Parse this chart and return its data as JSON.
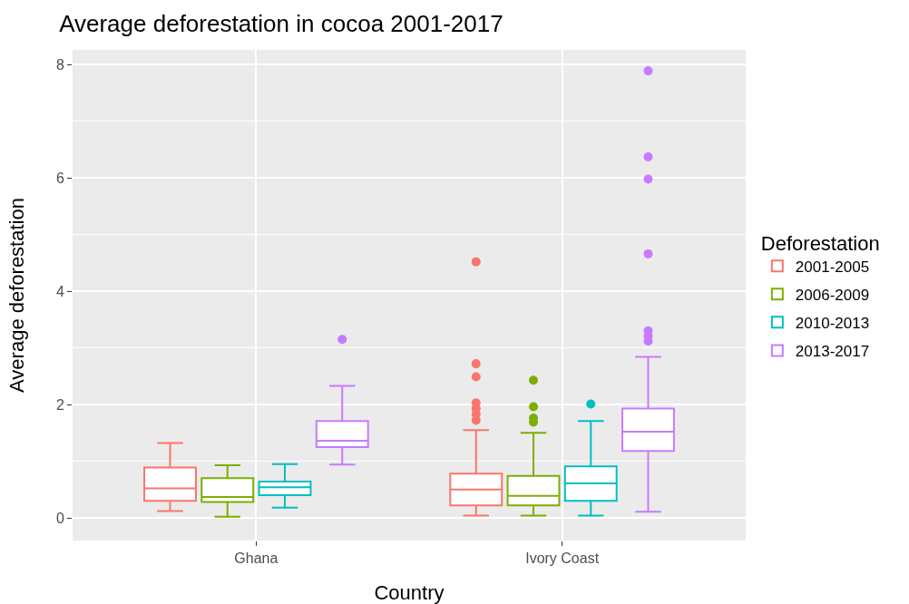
{
  "chart_data": {
    "type": "box",
    "title": "Average deforestation in cocoa 2001-2017",
    "xlabel": "Country",
    "ylabel": "Average deforestation",
    "legend_title": "Deforestation",
    "categories": [
      "Ghana",
      "Ivory Coast"
    ],
    "ylim": [
      -0.4,
      8.26
    ],
    "yticks": [
      0,
      2,
      4,
      6,
      8
    ],
    "grid": true,
    "legend": "right",
    "series": [
      {
        "name": "2001-2005",
        "color": "#f8766d",
        "boxes": [
          {
            "low": 0.12,
            "q1": 0.3,
            "median": 0.52,
            "q3": 0.89,
            "high": 1.32
          },
          {
            "low": 0.04,
            "q1": 0.22,
            "median": 0.5,
            "q3": 0.78,
            "high": 1.55,
            "outliers": [
              1.72,
              1.83,
              1.93,
              2.03,
              2.49,
              2.72,
              4.52
            ]
          }
        ]
      },
      {
        "name": "2006-2009",
        "color": "#7cae00",
        "boxes": [
          {
            "low": 0.02,
            "q1": 0.28,
            "median": 0.37,
            "q3": 0.7,
            "high": 0.93
          },
          {
            "low": 0.04,
            "q1": 0.22,
            "median": 0.39,
            "q3": 0.74,
            "high": 1.5,
            "outliers": [
              1.69,
              1.76,
              1.96,
              2.43
            ]
          }
        ]
      },
      {
        "name": "2010-2013",
        "color": "#00bfc4",
        "boxes": [
          {
            "low": 0.18,
            "q1": 0.4,
            "median": 0.54,
            "q3": 0.64,
            "high": 0.95
          },
          {
            "low": 0.04,
            "q1": 0.3,
            "median": 0.61,
            "q3": 0.91,
            "high": 1.71,
            "outliers": [
              2.01
            ]
          }
        ]
      },
      {
        "name": "2013-2017",
        "color": "#c77cff",
        "boxes": [
          {
            "low": 0.94,
            "q1": 1.25,
            "median": 1.36,
            "q3": 1.71,
            "high": 2.33,
            "outliers": [
              3.15
            ]
          },
          {
            "low": 0.11,
            "q1": 1.18,
            "median": 1.52,
            "q3": 1.93,
            "high": 2.84,
            "outliers": [
              3.12,
              3.21,
              3.3,
              4.66,
              5.98,
              6.37,
              7.89
            ]
          }
        ]
      }
    ]
  }
}
